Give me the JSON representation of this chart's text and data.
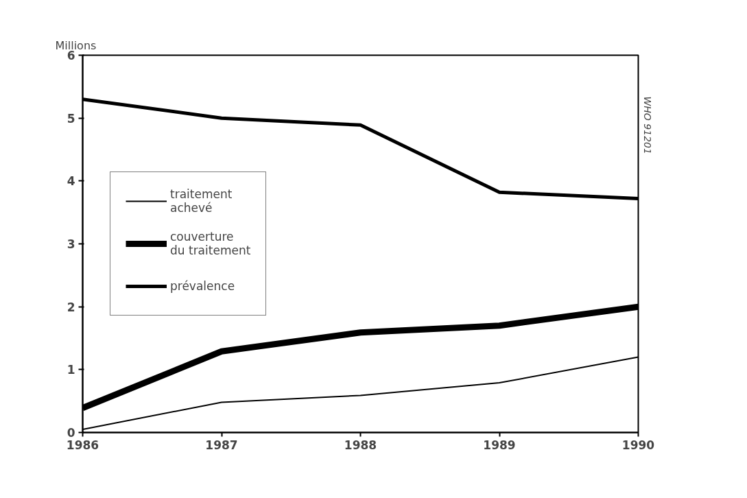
{
  "chart_data": {
    "type": "line",
    "ylabel": "Millions",
    "x": [
      1986,
      1987,
      1988,
      1989,
      1990
    ],
    "series": [
      {
        "name": "traitement achevé",
        "color": "#000000",
        "values": [
          0.05,
          0.48,
          0.59,
          0.79,
          1.2
        ]
      },
      {
        "name": "couverture du traitement",
        "color": "#000000",
        "values": [
          0.39,
          1.29,
          1.59,
          1.7,
          2.0
        ]
      },
      {
        "name": "prévalence",
        "color": "#000000",
        "values": [
          5.3,
          5.0,
          4.89,
          3.82,
          3.72
        ]
      }
    ],
    "xlim": [
      1986,
      1990
    ],
    "xticks": [
      1986,
      1987,
      1988,
      1989,
      1990
    ],
    "ylim": [
      0,
      6
    ],
    "yticks": [
      0,
      1,
      2,
      3,
      4,
      5,
      6
    ],
    "grid": false,
    "legend": "left",
    "marker": "none",
    "line_style": "solid",
    "annotations": [
      "WHO 91201"
    ]
  }
}
